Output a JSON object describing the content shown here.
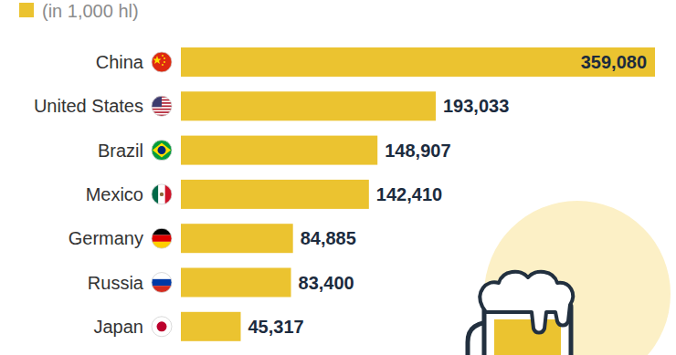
{
  "chart_data": {
    "type": "bar",
    "orientation": "horizontal",
    "subtitle": "(in 1,000 hl)",
    "categories": [
      "China",
      "United States",
      "Brazil",
      "Mexico",
      "Germany",
      "Russia",
      "Japan"
    ],
    "values": [
      359080,
      193033,
      148907,
      142410,
      84885,
      83400,
      45317
    ],
    "value_labels": [
      "359,080",
      "193,033",
      "148,907",
      "142,410",
      "84,885",
      "83,400",
      "45,317"
    ],
    "color": "#ebc330",
    "xlim": [
      0,
      359080
    ],
    "data_labels": true,
    "tick_labels": false,
    "grid": false
  }
}
